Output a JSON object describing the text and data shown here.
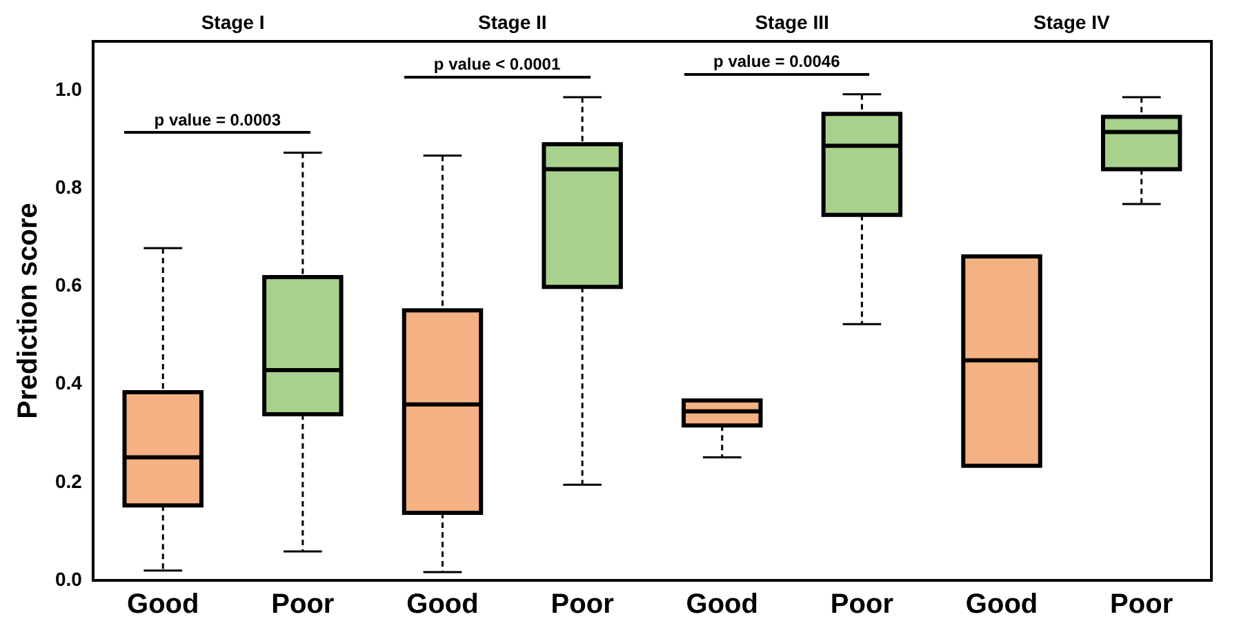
{
  "chart_data": {
    "type": "box",
    "ylabel": "Prediction score",
    "categories": [
      "Good",
      "Poor",
      "Good",
      "Poor",
      "Good",
      "Poor",
      "Good",
      "Poor"
    ],
    "colors": [
      "#f4b183",
      "#a9d18e",
      "#f4b183",
      "#a9d18e",
      "#f4b183",
      "#a9d18e",
      "#f4b183",
      "#a9d18e"
    ],
    "boxes": [
      {
        "low": 0.02,
        "q1": 0.153,
        "median": 0.251,
        "q3": 0.384,
        "high": 0.678
      },
      {
        "low": 0.059,
        "q1": 0.339,
        "median": 0.429,
        "q3": 0.619,
        "high": 0.873
      },
      {
        "low": 0.017,
        "q1": 0.138,
        "median": 0.359,
        "q3": 0.551,
        "high": 0.867
      },
      {
        "low": 0.195,
        "q1": 0.599,
        "median": 0.839,
        "q3": 0.89,
        "high": 0.986
      },
      {
        "low": 0.251,
        "q1": 0.316,
        "median": 0.345,
        "q3": 0.367,
        "high": 0.367
      },
      {
        "low": 0.523,
        "q1": 0.746,
        "median": 0.887,
        "q3": 0.952,
        "high": 0.992
      },
      {
        "low": 0.234,
        "q1": 0.234,
        "median": 0.449,
        "q3": 0.661,
        "high": 0.661
      },
      {
        "low": 0.768,
        "q1": 0.839,
        "median": 0.915,
        "q3": 0.946,
        "high": 0.986
      }
    ],
    "ylim": [
      0,
      1.1
    ],
    "yticks": [
      {
        "value": 0,
        "label": "0.0"
      },
      0.2,
      0.4,
      0.6,
      0.8,
      {
        "value": 1,
        "label": "1.0"
      }
    ],
    "annotations": [
      "Stage I",
      "Stage II",
      "Stage III",
      "Stage IV",
      "p value = 0.0003",
      "p value < 0.0001",
      "p value = 0.0046"
    ],
    "grid": false,
    "legend": false,
    "line_style": "dashed"
  }
}
